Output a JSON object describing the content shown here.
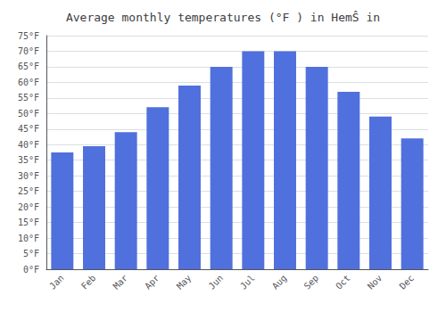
{
  "chart_data": {
    "type": "bar",
    "title": "Average monthly temperatures (°F ) in HemŜ in",
    "categories": [
      "Jan",
      "Feb",
      "Mar",
      "Apr",
      "May",
      "Jun",
      "Jul",
      "Aug",
      "Sep",
      "Oct",
      "Nov",
      "Dec"
    ],
    "values": [
      37.5,
      39.5,
      44.0,
      52.0,
      59.0,
      65.0,
      70.0,
      70.0,
      65.0,
      57.0,
      49.0,
      42.0
    ],
    "ylim": [
      0,
      75
    ],
    "yticks": [
      {
        "value": 0,
        "label": "0°F"
      },
      {
        "value": 5,
        "label": "5°F"
      },
      {
        "value": 10,
        "label": "10°F"
      },
      {
        "value": 15,
        "label": "15°F"
      },
      {
        "value": 20,
        "label": "20°F"
      },
      {
        "value": 25,
        "label": "25°F"
      },
      {
        "value": 30,
        "label": "30°F"
      },
      {
        "value": 35,
        "label": "35°F"
      },
      {
        "value": 40,
        "label": "40°F"
      },
      {
        "value": 45,
        "label": "45°F"
      },
      {
        "value": 50,
        "label": "50°F"
      },
      {
        "value": 55,
        "label": "55°F"
      },
      {
        "value": 60,
        "label": "60°F"
      },
      {
        "value": 65,
        "label": "65°F"
      },
      {
        "value": 70,
        "label": "70°F"
      },
      {
        "value": 75,
        "label": "75°F"
      }
    ],
    "grid": true
  }
}
